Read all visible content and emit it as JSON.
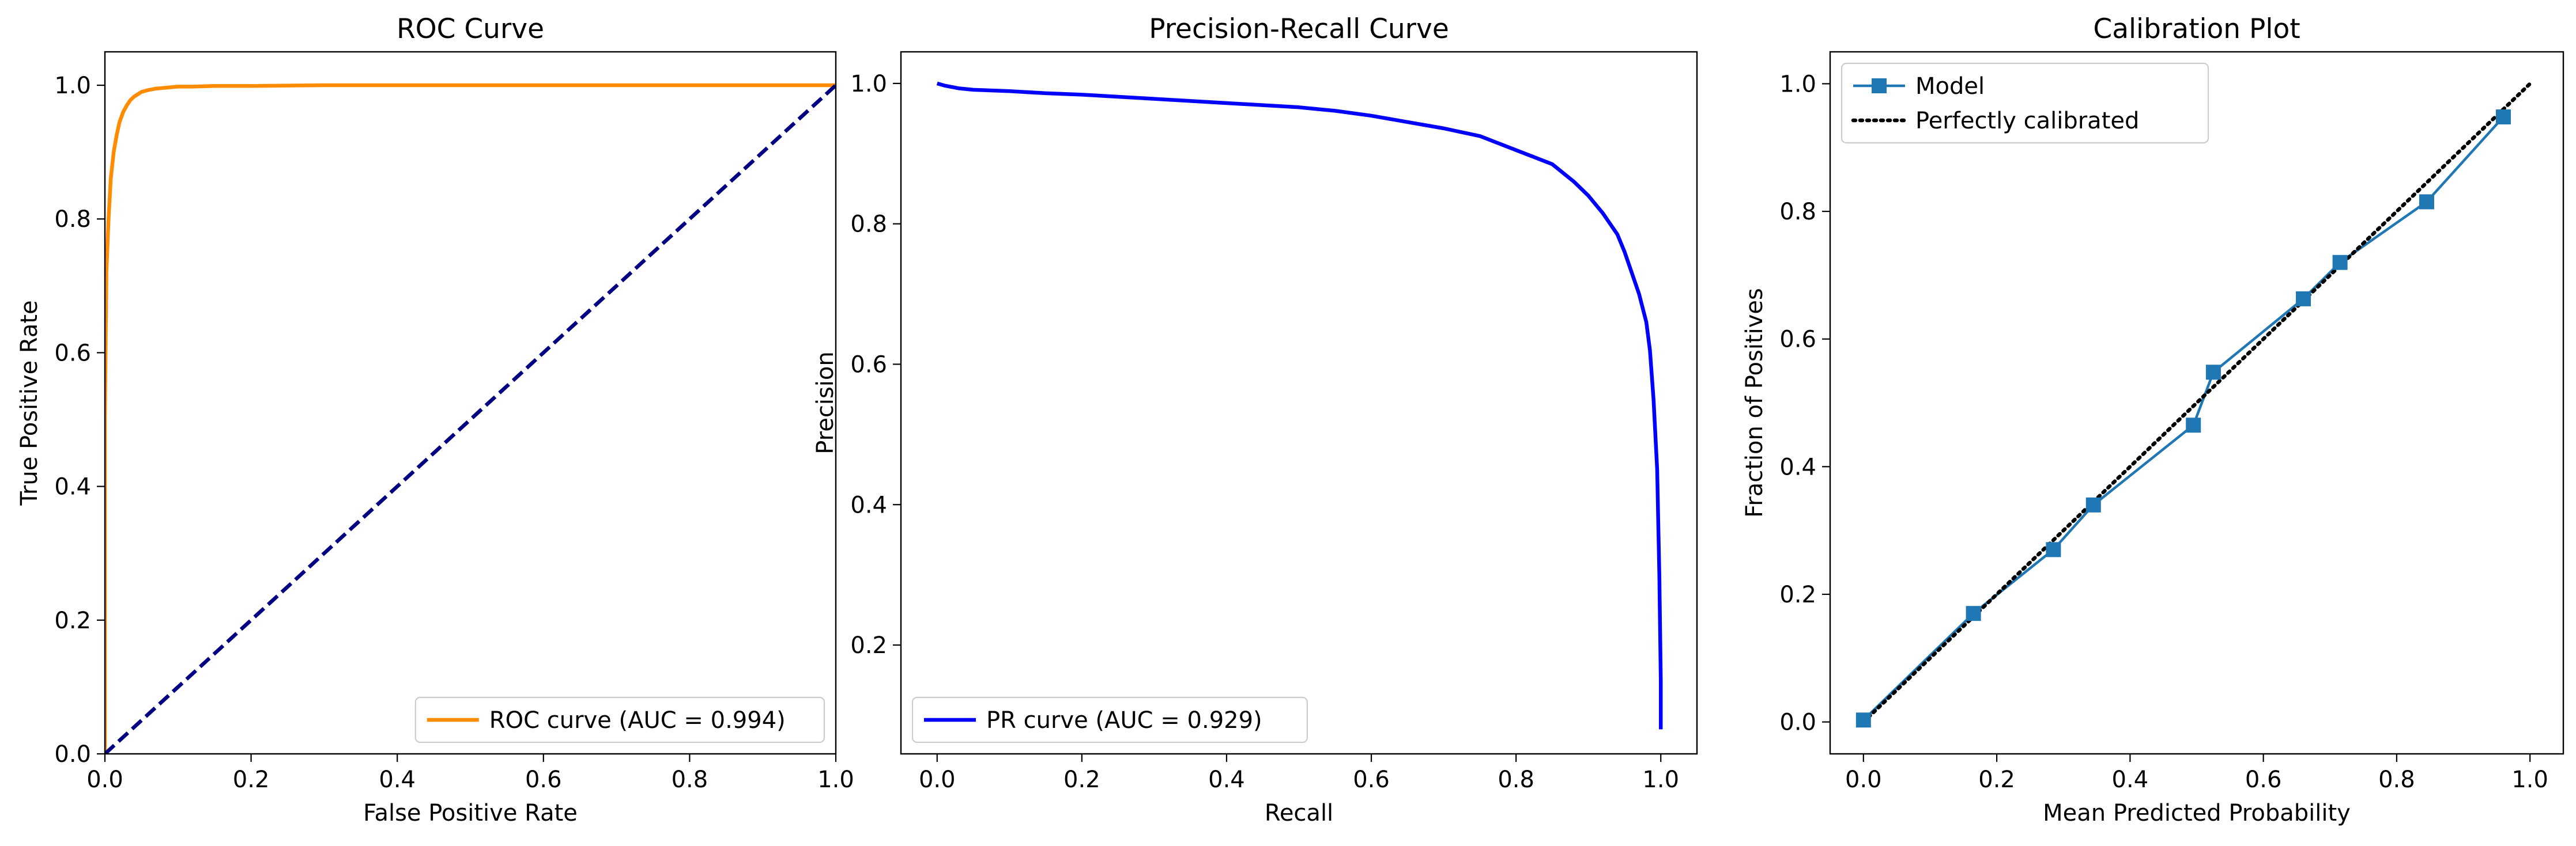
{
  "chart_data": [
    {
      "type": "line",
      "title": "ROC Curve",
      "xlabel": "False Positive Rate",
      "ylabel": "True Positive Rate",
      "xlim": [
        0.0,
        1.0
      ],
      "ylim": [
        0.0,
        1.05
      ],
      "xticks": [
        0.0,
        0.2,
        0.4,
        0.6,
        0.8,
        1.0
      ],
      "yticks": [
        0.0,
        0.2,
        0.4,
        0.6,
        0.8,
        1.0
      ],
      "xtick_labels": [
        "0.0",
        "0.2",
        "0.4",
        "0.6",
        "0.8",
        "1.0"
      ],
      "ytick_labels": [
        "0.0",
        "0.2",
        "0.4",
        "0.6",
        "0.8",
        "1.0"
      ],
      "grid": false,
      "legend_position": "lower right",
      "series": [
        {
          "name": "ROC curve (AUC = 0.994)",
          "color": "#ff8c00",
          "style": "solid",
          "marker": "none",
          "legend": true,
          "x": [
            0.0,
            0.0,
            0.002,
            0.005,
            0.008,
            0.012,
            0.016,
            0.02,
            0.025,
            0.03,
            0.035,
            0.04,
            0.05,
            0.06,
            0.07,
            0.08,
            0.1,
            0.12,
            0.15,
            0.2,
            0.3,
            0.5,
            0.7,
            1.0
          ],
          "y": [
            0.0,
            0.5,
            0.72,
            0.8,
            0.86,
            0.9,
            0.925,
            0.945,
            0.96,
            0.97,
            0.978,
            0.983,
            0.99,
            0.993,
            0.995,
            0.996,
            0.998,
            0.998,
            0.999,
            0.999,
            1.0,
            1.0,
            1.0,
            1.0
          ]
        },
        {
          "name": "",
          "color": "#000080",
          "style": "dashed",
          "marker": "none",
          "legend": false,
          "x": [
            0.0,
            1.0
          ],
          "y": [
            0.0,
            1.0
          ]
        }
      ]
    },
    {
      "type": "line",
      "title": "Precision-Recall Curve",
      "xlabel": "Recall",
      "ylabel": "Precision",
      "xlim": [
        -0.05,
        1.05
      ],
      "ylim": [
        0.045,
        1.045
      ],
      "xticks": [
        0.0,
        0.2,
        0.4,
        0.6,
        0.8,
        1.0
      ],
      "yticks": [
        0.2,
        0.4,
        0.6,
        0.8,
        1.0
      ],
      "xtick_labels": [
        "0.0",
        "0.2",
        "0.4",
        "0.6",
        "0.8",
        "1.0"
      ],
      "ytick_labels": [
        "0.2",
        "0.4",
        "0.6",
        "0.8",
        "1.0"
      ],
      "grid": false,
      "legend_position": "lower left",
      "series": [
        {
          "name": "PR curve (AUC = 0.929)",
          "color": "#0000ff",
          "style": "solid",
          "marker": "none",
          "legend": true,
          "x": [
            0.0,
            0.01,
            0.03,
            0.05,
            0.1,
            0.15,
            0.2,
            0.3,
            0.4,
            0.5,
            0.55,
            0.6,
            0.65,
            0.7,
            0.75,
            0.8,
            0.85,
            0.88,
            0.9,
            0.92,
            0.94,
            0.95,
            0.96,
            0.97,
            0.98,
            0.985,
            0.99,
            0.995,
            0.998,
            1.0,
            1.0
          ],
          "y": [
            1.0,
            0.997,
            0.993,
            0.991,
            0.989,
            0.986,
            0.984,
            0.978,
            0.972,
            0.966,
            0.961,
            0.954,
            0.945,
            0.936,
            0.925,
            0.905,
            0.885,
            0.86,
            0.84,
            0.815,
            0.785,
            0.76,
            0.73,
            0.7,
            0.66,
            0.62,
            0.55,
            0.45,
            0.3,
            0.15,
            0.08
          ]
        }
      ]
    },
    {
      "type": "line",
      "title": "Calibration Plot",
      "xlabel": "Mean Predicted Probability",
      "ylabel": "Fraction of Positives",
      "xlim": [
        -0.05,
        1.05
      ],
      "ylim": [
        -0.05,
        1.05
      ],
      "xticks": [
        0.0,
        0.2,
        0.4,
        0.6,
        0.8,
        1.0
      ],
      "yticks": [
        0.0,
        0.2,
        0.4,
        0.6,
        0.8,
        1.0
      ],
      "xtick_labels": [
        "0.0",
        "0.2",
        "0.4",
        "0.6",
        "0.8",
        "1.0"
      ],
      "ytick_labels": [
        "0.0",
        "0.2",
        "0.4",
        "0.6",
        "0.8",
        "1.0"
      ],
      "grid": false,
      "legend_position": "upper left",
      "series": [
        {
          "name": "Model",
          "color": "#1f77b4",
          "style": "solid",
          "marker": "square",
          "legend": true,
          "x": [
            0.0,
            0.165,
            0.285,
            0.345,
            0.495,
            0.525,
            0.66,
            0.715,
            0.845,
            0.96
          ],
          "y": [
            0.003,
            0.17,
            0.27,
            0.34,
            0.465,
            0.548,
            0.663,
            0.72,
            0.815,
            0.948
          ]
        },
        {
          "name": "Perfectly calibrated",
          "color": "#000000",
          "style": "dotted",
          "marker": "none",
          "legend": true,
          "x": [
            0.0,
            1.0
          ],
          "y": [
            0.0,
            1.0
          ]
        }
      ]
    }
  ]
}
